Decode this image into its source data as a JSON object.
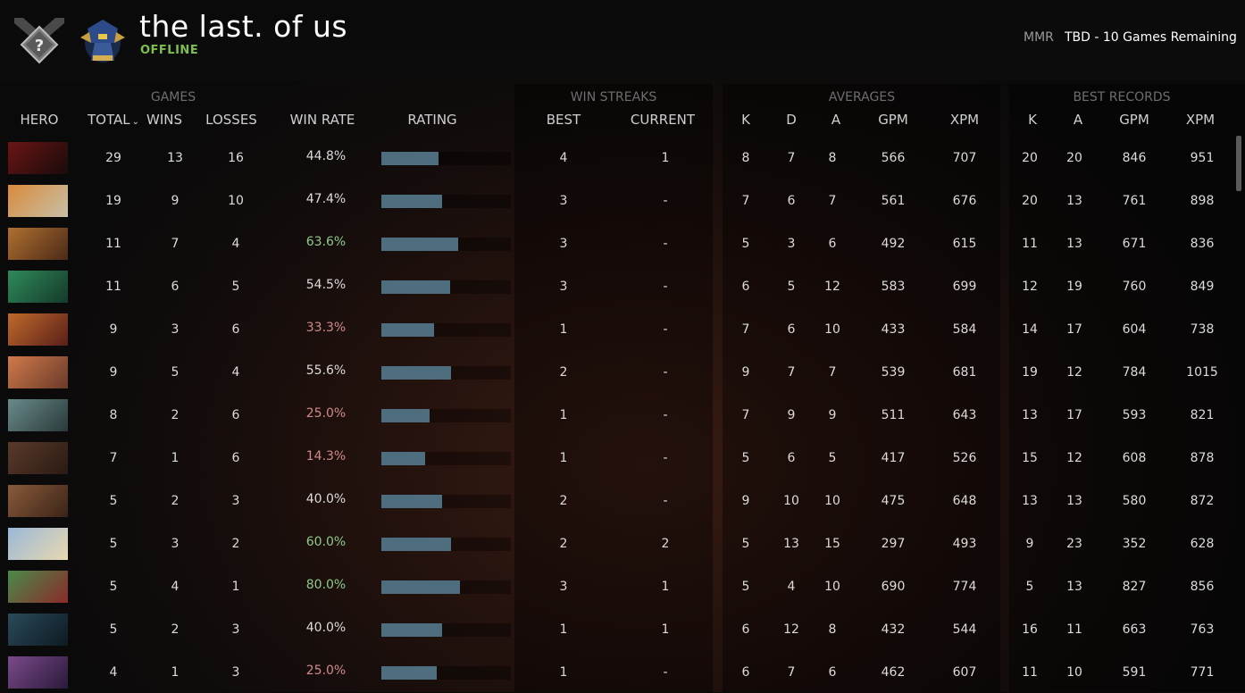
{
  "header": {
    "player_name": "the last. of us",
    "status": "OFFLINE",
    "mmr_label": "MMR",
    "mmr_value": "TBD - 10 Games Remaining",
    "rank_icon": "uncalibrated-rank-badge-icon",
    "avatar_icon": "player-avatar-icon"
  },
  "groups": {
    "games": "GAMES",
    "win_streaks": "WIN STREAKS",
    "averages": "AVERAGES",
    "best_records": "BEST RECORDS"
  },
  "columns": {
    "hero": "HERO",
    "total": "TOTAL",
    "wins": "WINS",
    "losses": "LOSSES",
    "win_rate": "WIN RATE",
    "rating": "RATING",
    "best": "BEST",
    "current": "CURRENT",
    "avg_k": "K",
    "avg_d": "D",
    "avg_a": "A",
    "avg_gpm": "GPM",
    "avg_xpm": "XPM",
    "best_k": "K",
    "best_a": "A",
    "best_gpm": "GPM",
    "best_xpm": "XPM"
  },
  "colors": {
    "win_rate_high": "#8fc98a",
    "win_rate_low": "#d08a8a",
    "win_rate_neutral": "#dcdcdc",
    "rating_bar": "#4e6e80",
    "status_online": "#7fbf4d"
  },
  "rows": [
    {
      "total": "29",
      "wins": "13",
      "losses": "16",
      "win_rate": "44.8%",
      "rating": 0.44,
      "best": "4",
      "current": "1",
      "k": "8",
      "d": "7",
      "a": "8",
      "gpm": "566",
      "xpm": "707",
      "bk": "20",
      "ba": "20",
      "bgpm": "846",
      "bxpm": "951",
      "tone": "neutral",
      "portrait": [
        "#6b1414",
        "#1a0b0b"
      ]
    },
    {
      "total": "19",
      "wins": "9",
      "losses": "10",
      "win_rate": "47.4%",
      "rating": 0.47,
      "best": "3",
      "current": "-",
      "k": "7",
      "d": "6",
      "a": "7",
      "gpm": "561",
      "xpm": "676",
      "bk": "20",
      "ba": "13",
      "bgpm": "761",
      "bxpm": "898",
      "tone": "neutral",
      "portrait": [
        "#d98a3a",
        "#c7c0a8"
      ]
    },
    {
      "total": "11",
      "wins": "7",
      "losses": "4",
      "win_rate": "63.6%",
      "rating": 0.59,
      "best": "3",
      "current": "-",
      "k": "5",
      "d": "3",
      "a": "6",
      "gpm": "492",
      "xpm": "615",
      "bk": "11",
      "ba": "13",
      "bgpm": "671",
      "bxpm": "836",
      "tone": "high",
      "portrait": [
        "#b07030",
        "#4a2a18"
      ]
    },
    {
      "total": "11",
      "wins": "6",
      "losses": "5",
      "win_rate": "54.5%",
      "rating": 0.53,
      "best": "3",
      "current": "-",
      "k": "6",
      "d": "5",
      "a": "12",
      "gpm": "583",
      "xpm": "699",
      "bk": "12",
      "ba": "19",
      "bgpm": "760",
      "bxpm": "849",
      "tone": "neutral",
      "portrait": [
        "#2f8a5a",
        "#143a2a"
      ]
    },
    {
      "total": "9",
      "wins": "3",
      "losses": "6",
      "win_rate": "33.3%",
      "rating": 0.41,
      "best": "1",
      "current": "-",
      "k": "7",
      "d": "6",
      "a": "10",
      "gpm": "433",
      "xpm": "584",
      "bk": "14",
      "ba": "17",
      "bgpm": "604",
      "bxpm": "738",
      "tone": "low",
      "portrait": [
        "#c06a2a",
        "#5a1f1a"
      ]
    },
    {
      "total": "9",
      "wins": "5",
      "losses": "4",
      "win_rate": "55.6%",
      "rating": 0.54,
      "best": "2",
      "current": "-",
      "k": "9",
      "d": "7",
      "a": "7",
      "gpm": "539",
      "xpm": "681",
      "bk": "19",
      "ba": "12",
      "bgpm": "784",
      "bxpm": "1015",
      "tone": "neutral",
      "portrait": [
        "#d07a4a",
        "#6a3a2a"
      ]
    },
    {
      "total": "8",
      "wins": "2",
      "losses": "6",
      "win_rate": "25.0%",
      "rating": 0.37,
      "best": "1",
      "current": "-",
      "k": "7",
      "d": "9",
      "a": "9",
      "gpm": "511",
      "xpm": "643",
      "bk": "13",
      "ba": "17",
      "bgpm": "593",
      "bxpm": "821",
      "tone": "low",
      "portrait": [
        "#6a8a8a",
        "#2a3a3a"
      ]
    },
    {
      "total": "7",
      "wins": "1",
      "losses": "6",
      "win_rate": "14.3%",
      "rating": 0.34,
      "best": "1",
      "current": "-",
      "k": "5",
      "d": "6",
      "a": "5",
      "gpm": "417",
      "xpm": "526",
      "bk": "15",
      "ba": "12",
      "bgpm": "608",
      "bxpm": "878",
      "tone": "low",
      "portrait": [
        "#5a3a2a",
        "#2a1a14"
      ]
    },
    {
      "total": "5",
      "wins": "2",
      "losses": "3",
      "win_rate": "40.0%",
      "rating": 0.47,
      "best": "2",
      "current": "-",
      "k": "9",
      "d": "10",
      "a": "10",
      "gpm": "475",
      "xpm": "648",
      "bk": "13",
      "ba": "13",
      "bgpm": "580",
      "bxpm": "872",
      "tone": "neutral",
      "portrait": [
        "#8a5a3a",
        "#3a2418"
      ]
    },
    {
      "total": "5",
      "wins": "3",
      "losses": "2",
      "win_rate": "60.0%",
      "rating": 0.54,
      "best": "2",
      "current": "2",
      "k": "5",
      "d": "13",
      "a": "15",
      "gpm": "297",
      "xpm": "493",
      "bk": "9",
      "ba": "23",
      "bgpm": "352",
      "bxpm": "628",
      "tone": "high",
      "portrait": [
        "#9ab8d8",
        "#e8d8b0"
      ]
    },
    {
      "total": "5",
      "wins": "4",
      "losses": "1",
      "win_rate": "80.0%",
      "rating": 0.61,
      "best": "3",
      "current": "1",
      "k": "5",
      "d": "4",
      "a": "10",
      "gpm": "690",
      "xpm": "774",
      "bk": "5",
      "ba": "13",
      "bgpm": "827",
      "bxpm": "856",
      "tone": "high",
      "portrait": [
        "#4a8a4a",
        "#8a2a2a"
      ]
    },
    {
      "total": "5",
      "wins": "2",
      "losses": "3",
      "win_rate": "40.0%",
      "rating": 0.47,
      "best": "1",
      "current": "1",
      "k": "6",
      "d": "12",
      "a": "8",
      "gpm": "432",
      "xpm": "544",
      "bk": "16",
      "ba": "11",
      "bgpm": "663",
      "bxpm": "763",
      "tone": "neutral",
      "portrait": [
        "#2a4a5a",
        "#0e1a22"
      ]
    },
    {
      "total": "4",
      "wins": "1",
      "losses": "3",
      "win_rate": "25.0%",
      "rating": 0.43,
      "best": "1",
      "current": "-",
      "k": "6",
      "d": "7",
      "a": "6",
      "gpm": "462",
      "xpm": "607",
      "bk": "11",
      "ba": "10",
      "bgpm": "591",
      "bxpm": "771",
      "tone": "low",
      "portrait": [
        "#7a4a8a",
        "#2a1a3a"
      ]
    }
  ]
}
